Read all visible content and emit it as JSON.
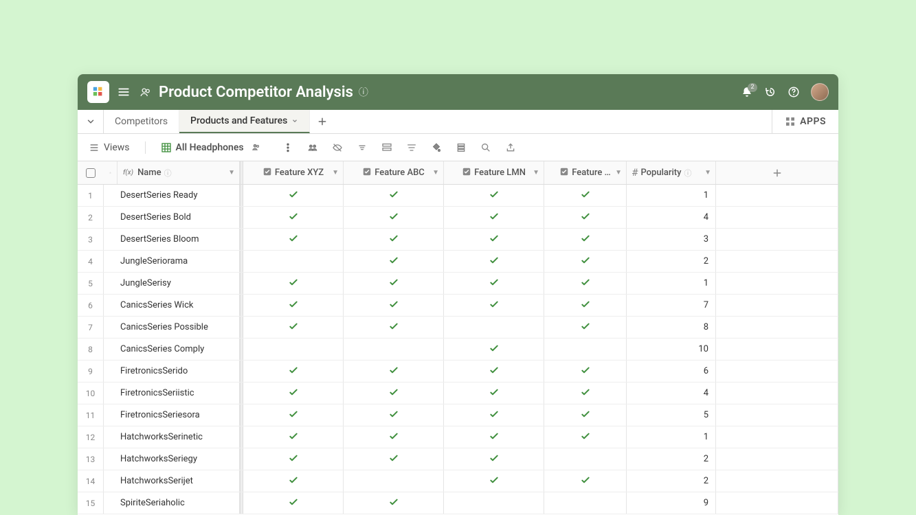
{
  "header": {
    "title": "Product Competitor Analysis",
    "notif_count": "2"
  },
  "tabs": {
    "collapse_icon": "collapse",
    "items": [
      {
        "label": "Competitors",
        "active": false
      },
      {
        "label": "Products and Features",
        "active": true
      }
    ],
    "apps_label": "APPS"
  },
  "viewbar": {
    "views_label": "Views",
    "view_name": "All Headphones"
  },
  "columns": {
    "name_label": "Name",
    "feat_xyz": "Feature XYZ",
    "feat_abc": "Feature ABC",
    "feat_lmn": "Feature LMN",
    "feat_trunc": "Feature …",
    "popularity": "Popularity"
  },
  "rows": [
    {
      "n": "1",
      "name": "DesertSeries Ready",
      "xyz": true,
      "abc": true,
      "lmn": true,
      "f4": true,
      "pop": "1"
    },
    {
      "n": "2",
      "name": "DesertSeries Bold",
      "xyz": true,
      "abc": true,
      "lmn": true,
      "f4": true,
      "pop": "4"
    },
    {
      "n": "3",
      "name": "DesertSeries Bloom",
      "xyz": true,
      "abc": true,
      "lmn": true,
      "f4": true,
      "pop": "3"
    },
    {
      "n": "4",
      "name": "JungleSeriorama",
      "xyz": false,
      "abc": true,
      "lmn": true,
      "f4": true,
      "pop": "2"
    },
    {
      "n": "5",
      "name": "JungleSerisy",
      "xyz": true,
      "abc": true,
      "lmn": true,
      "f4": true,
      "pop": "1"
    },
    {
      "n": "6",
      "name": "CanicsSeries Wick",
      "xyz": true,
      "abc": true,
      "lmn": true,
      "f4": true,
      "pop": "7"
    },
    {
      "n": "7",
      "name": "CanicsSeries Possible",
      "xyz": true,
      "abc": true,
      "lmn": false,
      "f4": true,
      "pop": "8"
    },
    {
      "n": "8",
      "name": "CanicsSeries Comply",
      "xyz": false,
      "abc": false,
      "lmn": true,
      "f4": false,
      "pop": "10"
    },
    {
      "n": "9",
      "name": "FiretronicsSerido",
      "xyz": true,
      "abc": true,
      "lmn": true,
      "f4": true,
      "pop": "6"
    },
    {
      "n": "10",
      "name": "FiretronicsSeriistic",
      "xyz": true,
      "abc": true,
      "lmn": true,
      "f4": true,
      "pop": "4"
    },
    {
      "n": "11",
      "name": "FiretronicsSeriesora",
      "xyz": true,
      "abc": true,
      "lmn": true,
      "f4": true,
      "pop": "5"
    },
    {
      "n": "12",
      "name": "HatchworksSerinetic",
      "xyz": true,
      "abc": true,
      "lmn": true,
      "f4": true,
      "pop": "1"
    },
    {
      "n": "13",
      "name": "HatchworksSeriegy",
      "xyz": true,
      "abc": true,
      "lmn": true,
      "f4": false,
      "pop": "2"
    },
    {
      "n": "14",
      "name": "HatchworksSerijet",
      "xyz": true,
      "abc": false,
      "lmn": true,
      "f4": true,
      "pop": "2"
    },
    {
      "n": "15",
      "name": "SpiriteSeriaholic",
      "xyz": true,
      "abc": true,
      "lmn": false,
      "f4": false,
      "pop": "9"
    }
  ],
  "colors": {
    "page_bg": "#d4f5d0",
    "header_bg": "#5a7a57",
    "check_green": "#3f8f3d",
    "border": "#e5e5e5"
  }
}
